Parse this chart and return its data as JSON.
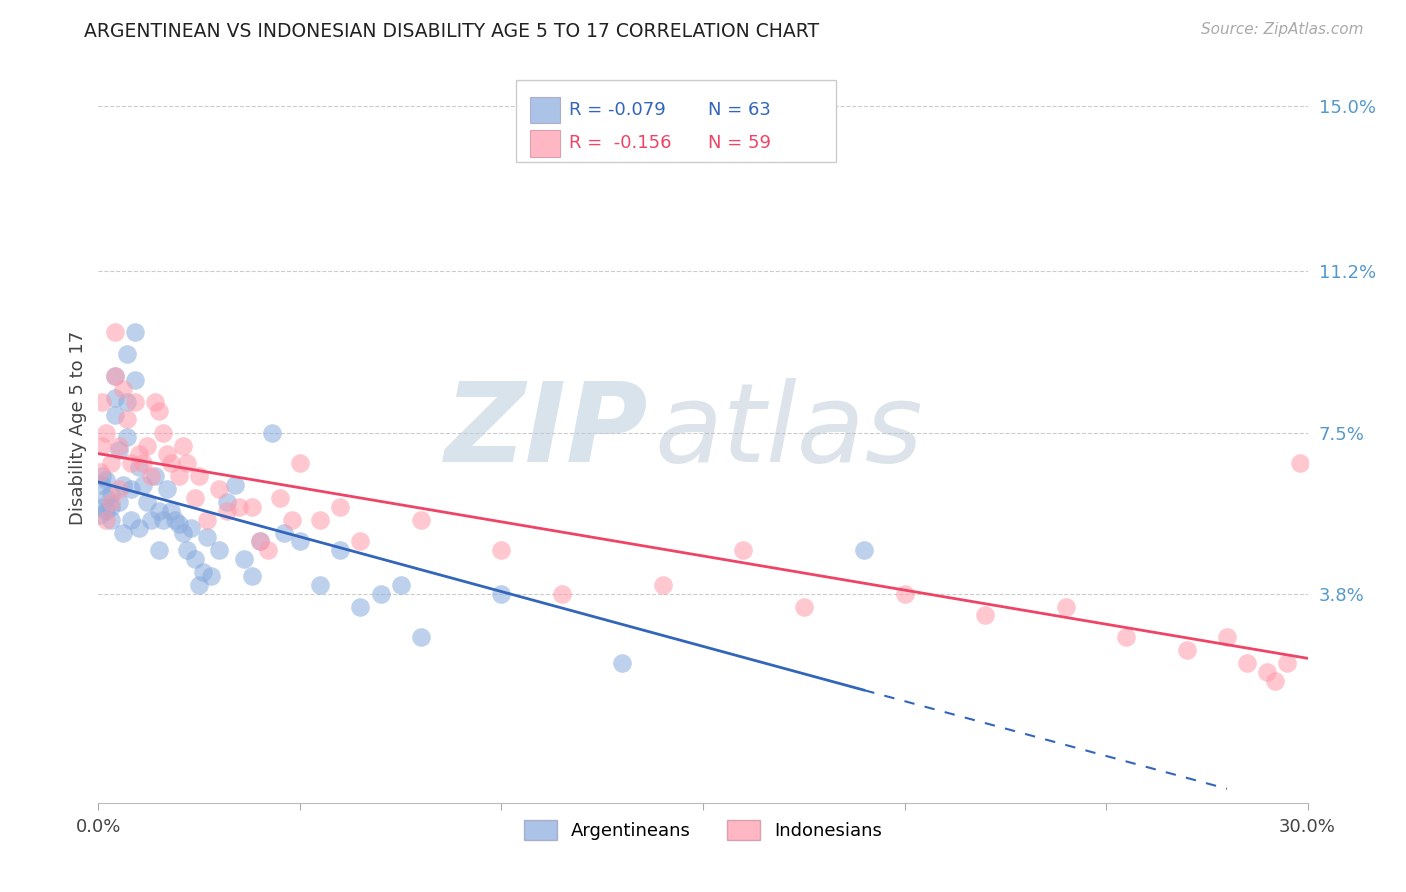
{
  "title": "ARGENTINEAN VS INDONESIAN DISABILITY AGE 5 TO 17 CORRELATION CHART",
  "source": "Source: ZipAtlas.com",
  "ylabel": "Disability Age 5 to 17",
  "right_ytick_vals": [
    0.038,
    0.075,
    0.112,
    0.15
  ],
  "right_ytick_labels": [
    "3.8%",
    "7.5%",
    "11.2%",
    "15.0%"
  ],
  "xlim": [
    0.0,
    0.3
  ],
  "ylim": [
    -0.01,
    0.162
  ],
  "legend_blue_r": "R = -0.079",
  "legend_blue_n": "N = 63",
  "legend_pink_r": "R =  -0.156",
  "legend_pink_n": "N = 59",
  "legend_label_blue": "Argentineans",
  "legend_label_pink": "Indonesians",
  "blue_color": "#88AADD",
  "pink_color": "#FF99AA",
  "blue_line_color": "#3366BB",
  "pink_line_color": "#EE4466",
  "watermark_color": "#C8DFF0",
  "blue_x": [
    0.0005,
    0.001,
    0.001,
    0.001,
    0.002,
    0.002,
    0.002,
    0.003,
    0.003,
    0.003,
    0.004,
    0.004,
    0.004,
    0.005,
    0.005,
    0.006,
    0.006,
    0.007,
    0.007,
    0.007,
    0.008,
    0.008,
    0.009,
    0.009,
    0.01,
    0.01,
    0.011,
    0.012,
    0.013,
    0.014,
    0.015,
    0.015,
    0.016,
    0.017,
    0.018,
    0.019,
    0.02,
    0.021,
    0.022,
    0.023,
    0.024,
    0.025,
    0.026,
    0.027,
    0.028,
    0.03,
    0.032,
    0.034,
    0.036,
    0.038,
    0.04,
    0.043,
    0.046,
    0.05,
    0.055,
    0.06,
    0.065,
    0.07,
    0.075,
    0.08,
    0.1,
    0.13,
    0.19
  ],
  "blue_y": [
    0.056,
    0.058,
    0.063,
    0.065,
    0.057,
    0.06,
    0.064,
    0.055,
    0.058,
    0.061,
    0.088,
    0.079,
    0.083,
    0.071,
    0.059,
    0.063,
    0.052,
    0.074,
    0.082,
    0.093,
    0.062,
    0.055,
    0.098,
    0.087,
    0.067,
    0.053,
    0.063,
    0.059,
    0.055,
    0.065,
    0.057,
    0.048,
    0.055,
    0.062,
    0.057,
    0.055,
    0.054,
    0.052,
    0.048,
    0.053,
    0.046,
    0.04,
    0.043,
    0.051,
    0.042,
    0.048,
    0.059,
    0.063,
    0.046,
    0.042,
    0.05,
    0.075,
    0.052,
    0.05,
    0.04,
    0.048,
    0.035,
    0.038,
    0.04,
    0.028,
    0.038,
    0.022,
    0.048
  ],
  "pink_x": [
    0.0005,
    0.001,
    0.001,
    0.002,
    0.002,
    0.003,
    0.003,
    0.004,
    0.004,
    0.005,
    0.005,
    0.006,
    0.007,
    0.008,
    0.009,
    0.01,
    0.011,
    0.012,
    0.013,
    0.014,
    0.015,
    0.016,
    0.017,
    0.018,
    0.02,
    0.021,
    0.022,
    0.024,
    0.025,
    0.027,
    0.03,
    0.032,
    0.035,
    0.038,
    0.04,
    0.042,
    0.045,
    0.048,
    0.05,
    0.055,
    0.06,
    0.065,
    0.08,
    0.1,
    0.115,
    0.14,
    0.16,
    0.175,
    0.2,
    0.22,
    0.24,
    0.255,
    0.27,
    0.28,
    0.285,
    0.29,
    0.292,
    0.295,
    0.298
  ],
  "pink_y": [
    0.066,
    0.072,
    0.082,
    0.055,
    0.075,
    0.059,
    0.068,
    0.098,
    0.088,
    0.062,
    0.072,
    0.085,
    0.078,
    0.068,
    0.082,
    0.07,
    0.068,
    0.072,
    0.065,
    0.082,
    0.08,
    0.075,
    0.07,
    0.068,
    0.065,
    0.072,
    0.068,
    0.06,
    0.065,
    0.055,
    0.062,
    0.057,
    0.058,
    0.058,
    0.05,
    0.048,
    0.06,
    0.055,
    0.068,
    0.055,
    0.058,
    0.05,
    0.055,
    0.048,
    0.038,
    0.04,
    0.048,
    0.035,
    0.038,
    0.033,
    0.035,
    0.028,
    0.025,
    0.028,
    0.022,
    0.02,
    0.018,
    0.022,
    0.068
  ]
}
